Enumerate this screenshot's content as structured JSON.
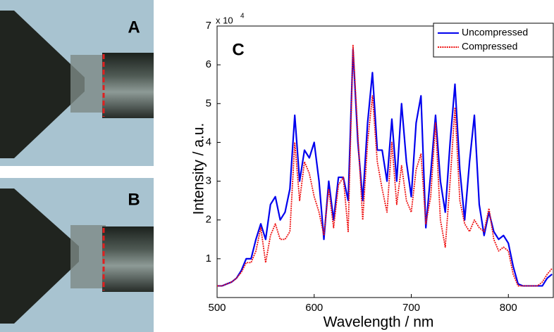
{
  "panel_labels": [
    "A",
    "B"
  ],
  "chart_data": {
    "type": "line",
    "annotation": "C",
    "xlabel": "Wavelength / nm",
    "ylabel": "Intensity / a.u.",
    "ylabel_multiplier": "x 10",
    "ylabel_exponent": "4",
    "xlim": [
      500,
      847
    ],
    "xticks": [
      500,
      600,
      700,
      800
    ],
    "ylim": [
      0,
      7
    ],
    "yticks": [
      1,
      2,
      3,
      4,
      5,
      6,
      7
    ],
    "legend": "upper right",
    "x": [
      500,
      505,
      510,
      515,
      520,
      525,
      530,
      535,
      540,
      545,
      550,
      555,
      560,
      565,
      570,
      575,
      580,
      585,
      590,
      595,
      600,
      605,
      610,
      615,
      620,
      625,
      630,
      635,
      640,
      645,
      650,
      655,
      660,
      665,
      670,
      675,
      680,
      685,
      690,
      695,
      700,
      705,
      710,
      715,
      720,
      725,
      730,
      735,
      740,
      745,
      750,
      755,
      760,
      765,
      770,
      775,
      780,
      785,
      790,
      795,
      800,
      805,
      810,
      815,
      820,
      825,
      830,
      835,
      840,
      845
    ],
    "series": [
      {
        "name": "Uncompressed",
        "color": "#0000ee",
        "style": "solid",
        "values": [
          0.3,
          0.3,
          0.35,
          0.4,
          0.5,
          0.7,
          1.0,
          1.0,
          1.5,
          1.9,
          1.5,
          2.4,
          2.6,
          2.0,
          2.2,
          2.8,
          4.7,
          3.0,
          3.8,
          3.6,
          4.0,
          3.0,
          1.5,
          3.0,
          2.0,
          3.1,
          3.1,
          2.5,
          6.4,
          4.0,
          2.5,
          4.5,
          5.8,
          3.8,
          3.8,
          3.0,
          4.6,
          3.0,
          5.0,
          3.5,
          2.6,
          4.5,
          5.2,
          1.8,
          3.2,
          4.7,
          3.0,
          2.2,
          4.0,
          5.5,
          3.3,
          2.0,
          3.5,
          4.7,
          2.4,
          1.6,
          2.2,
          1.7,
          1.5,
          1.6,
          1.4,
          0.8,
          0.35,
          0.3,
          0.3,
          0.3,
          0.3,
          0.3,
          0.5,
          0.6
        ]
      },
      {
        "name": "Compressed",
        "color": "#ee1111",
        "style": "dotted",
        "values": [
          0.3,
          0.3,
          0.35,
          0.4,
          0.5,
          0.65,
          0.9,
          0.9,
          1.2,
          1.8,
          0.9,
          1.6,
          1.9,
          1.5,
          1.5,
          1.7,
          4.0,
          2.5,
          3.5,
          3.2,
          2.6,
          2.2,
          1.6,
          2.8,
          1.8,
          2.9,
          3.1,
          1.7,
          6.5,
          4.2,
          2.0,
          4.0,
          5.2,
          3.5,
          2.8,
          2.2,
          4.0,
          2.4,
          3.4,
          2.5,
          2.2,
          3.3,
          3.7,
          1.9,
          2.6,
          4.5,
          2.0,
          1.3,
          3.0,
          4.9,
          2.5,
          1.9,
          1.7,
          2.0,
          1.8,
          1.7,
          2.3,
          1.5,
          1.2,
          1.3,
          1.2,
          0.6,
          0.3,
          0.3,
          0.3,
          0.3,
          0.3,
          0.4,
          0.6,
          0.75
        ]
      }
    ]
  }
}
